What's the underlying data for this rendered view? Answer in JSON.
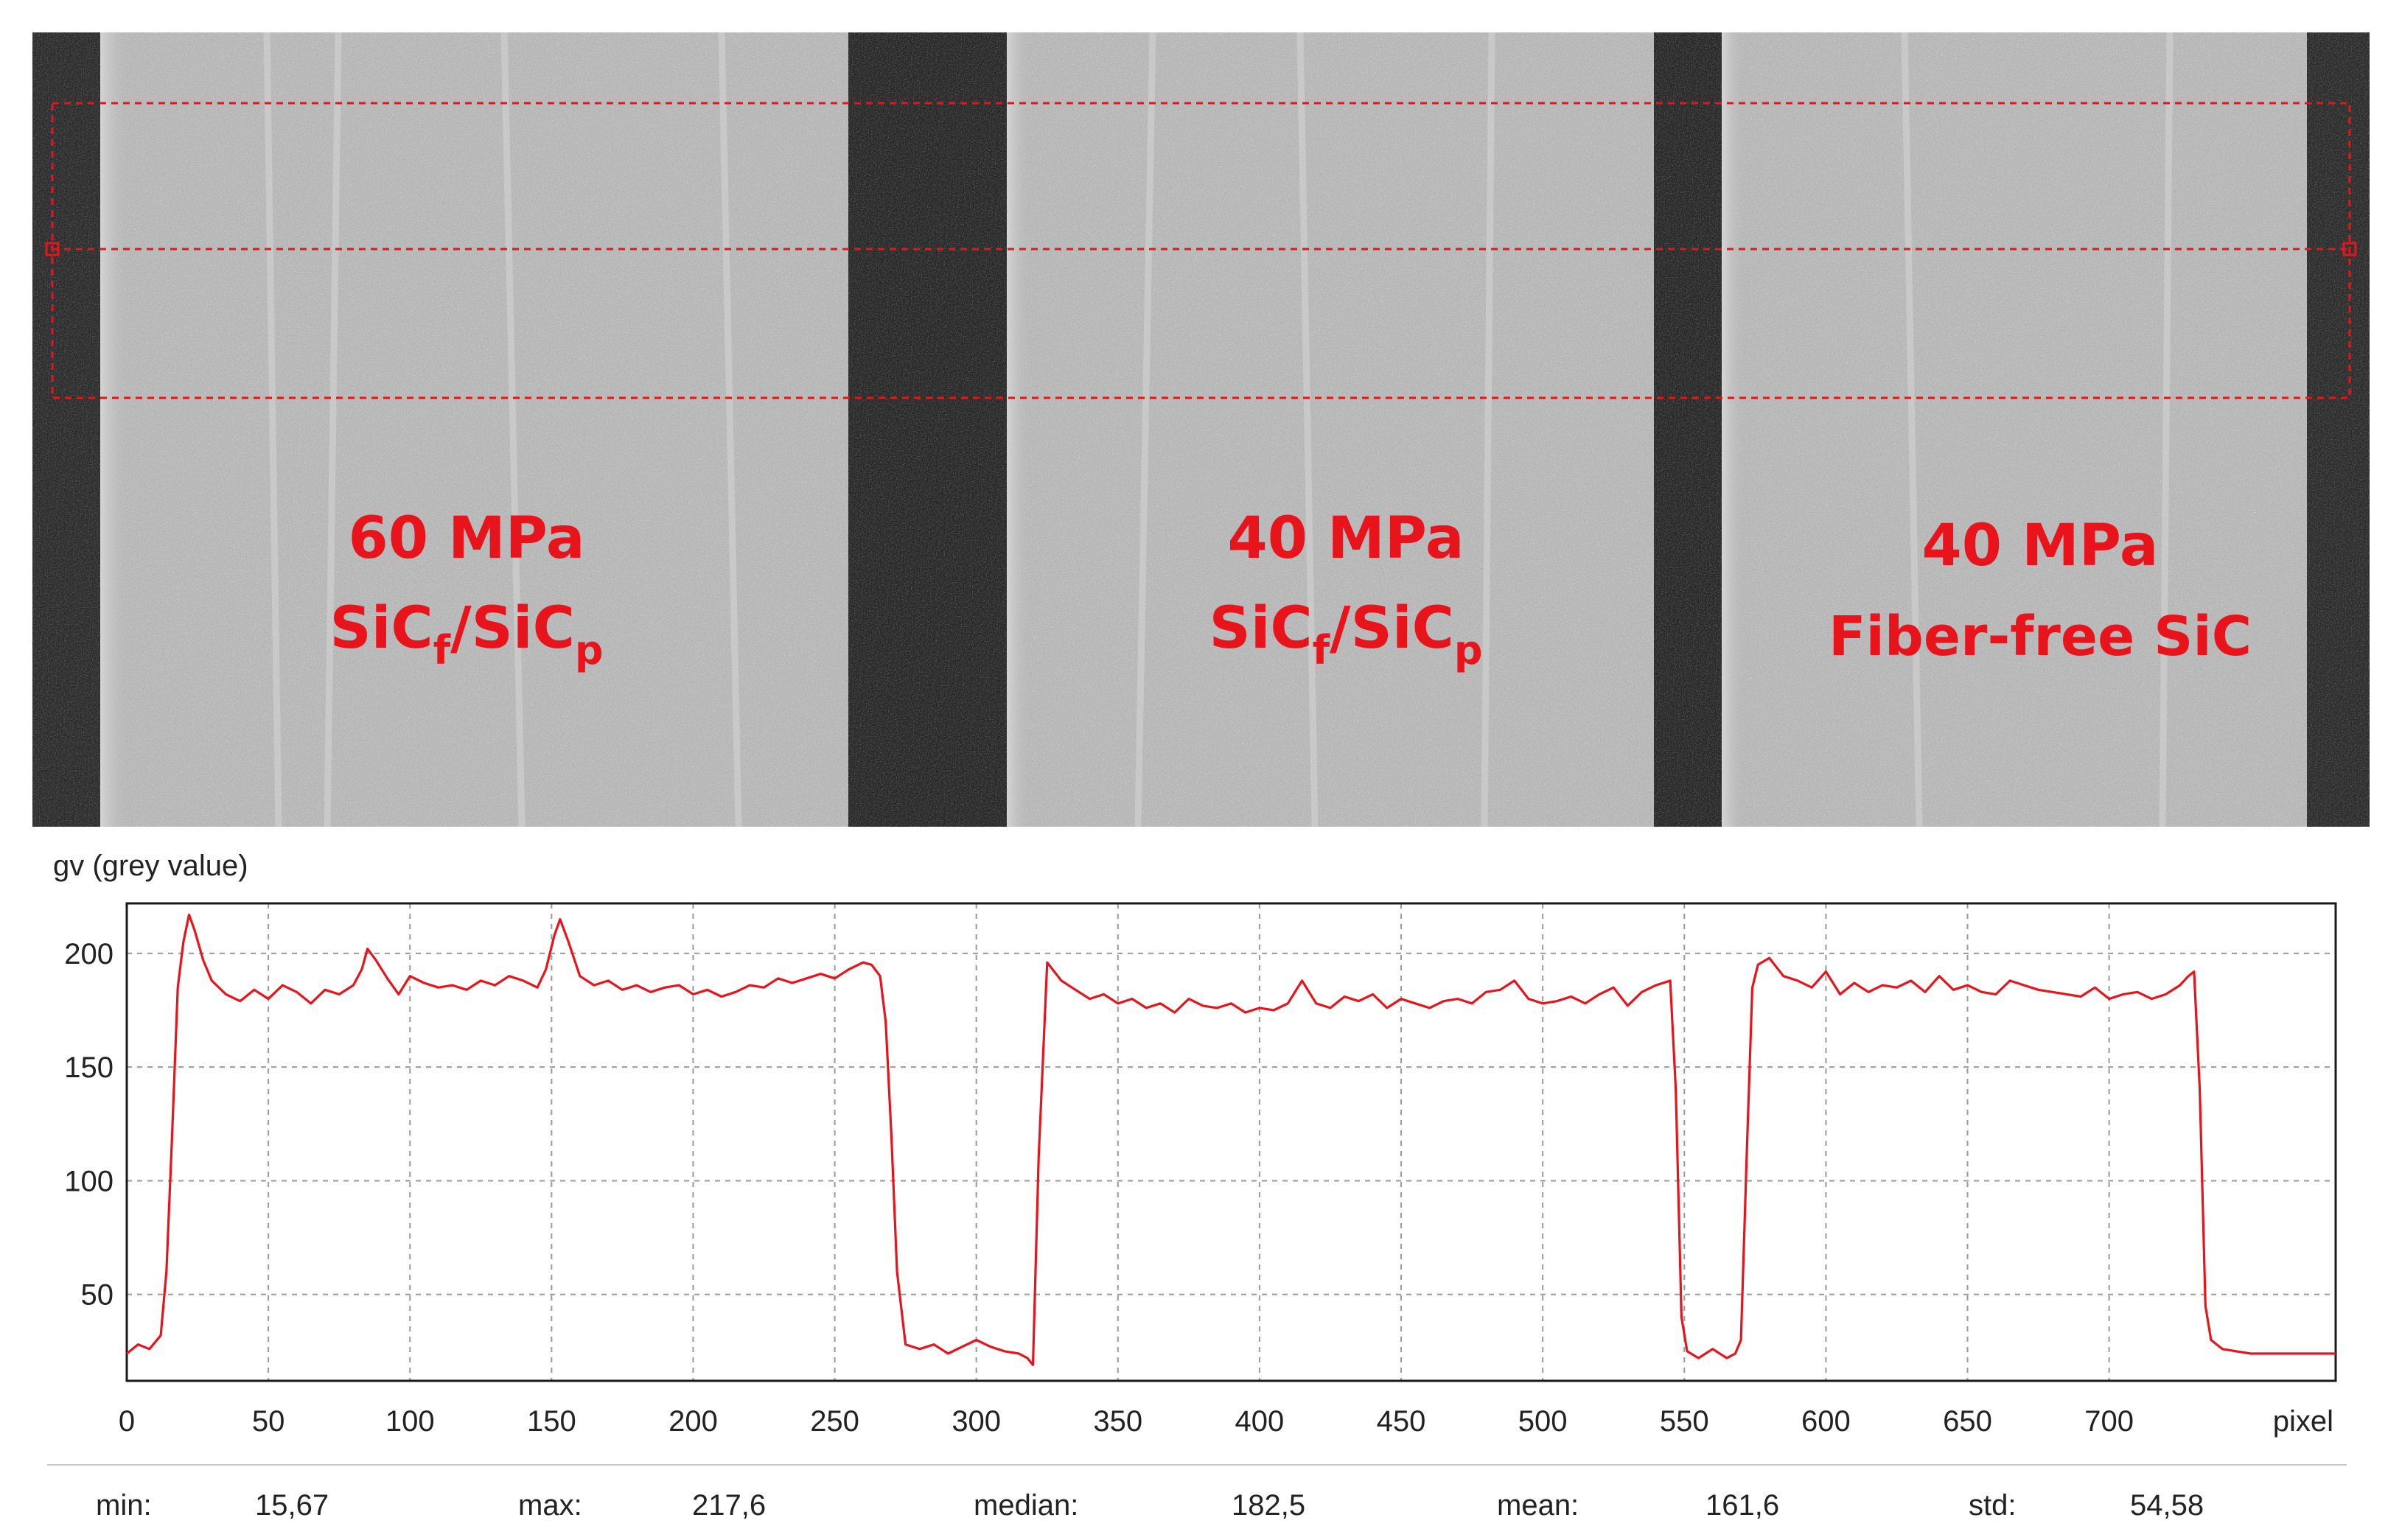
{
  "ct_image": {
    "labels": [
      {
        "line1": "60 MPa",
        "line2_base1": "SiC",
        "line2_sub1": "f",
        "line2_mid": "/SiC",
        "line2_sub2": "p"
      },
      {
        "line1": "40 MPa",
        "line2_base1": "SiC",
        "line2_sub1": "f",
        "line2_mid": "/SiC",
        "line2_sub2": "p"
      },
      {
        "line1": "40 MPa",
        "line2": "Fiber-free SiC"
      }
    ],
    "label_color": "#e8141c",
    "roi_color": "#e8141c"
  },
  "chart_data": {
    "type": "line",
    "ylabel": "gv (grey value)",
    "xlabel": "pixel",
    "xlim": [
      0,
      780
    ],
    "ylim": [
      12,
      222
    ],
    "xticks": [
      0,
      50,
      100,
      150,
      200,
      250,
      300,
      350,
      400,
      450,
      500,
      550,
      600,
      650,
      700
    ],
    "xtick_labels": [
      "0",
      "50",
      "100",
      "150",
      "200",
      "250",
      "300",
      "350",
      "400",
      "450",
      "500",
      "550",
      "600",
      "650",
      "700"
    ],
    "yticks": [
      50,
      100,
      150,
      200
    ],
    "ytick_labels": [
      "50",
      "100",
      "150",
      "200"
    ],
    "grid": true,
    "line_color": "#e8141c",
    "series": [
      {
        "x": [
          0,
          4,
          8,
          12,
          14,
          16,
          18,
          20,
          22,
          24,
          27,
          30,
          35,
          40,
          45,
          50,
          55,
          60,
          65,
          70,
          75,
          80,
          83,
          85,
          88,
          92,
          96,
          100,
          105,
          110,
          115,
          120,
          125,
          130,
          135,
          140,
          145,
          148,
          151,
          153,
          156,
          160,
          165,
          170,
          175,
          180,
          185,
          190,
          195,
          200,
          205,
          210,
          215,
          220,
          225,
          230,
          235,
          240,
          245,
          250,
          255,
          260,
          263,
          266,
          268,
          270,
          272,
          275,
          280,
          285,
          290,
          295,
          300,
          305,
          310,
          315,
          318,
          320,
          322,
          325,
          330,
          335,
          340,
          345,
          350,
          355,
          360,
          365,
          370,
          375,
          380,
          385,
          390,
          395,
          400,
          405,
          410,
          415,
          420,
          425,
          430,
          435,
          440,
          445,
          450,
          455,
          460,
          465,
          470,
          475,
          480,
          485,
          490,
          495,
          500,
          505,
          510,
          515,
          520,
          525,
          530,
          535,
          540,
          545,
          547,
          549,
          551,
          555,
          560,
          565,
          568,
          570,
          572,
          574,
          576,
          580,
          585,
          590,
          595,
          600,
          605,
          610,
          615,
          620,
          625,
          630,
          635,
          640,
          645,
          650,
          655,
          660,
          665,
          670,
          675,
          680,
          685,
          690,
          695,
          700,
          705,
          710,
          715,
          720,
          725,
          728,
          730,
          732,
          734,
          736,
          740,
          745,
          750,
          755,
          760,
          765,
          770,
          775,
          780
        ],
        "y": [
          24,
          28,
          26,
          32,
          60,
          120,
          185,
          205,
          217,
          210,
          197,
          188,
          182,
          179,
          184,
          180,
          186,
          183,
          178,
          184,
          182,
          186,
          193,
          202,
          197,
          189,
          182,
          190,
          187,
          185,
          186,
          184,
          188,
          186,
          190,
          188,
          185,
          193,
          208,
          215,
          205,
          190,
          186,
          188,
          184,
          186,
          183,
          185,
          186,
          182,
          184,
          181,
          183,
          186,
          185,
          189,
          187,
          189,
          191,
          189,
          193,
          196,
          195,
          190,
          170,
          120,
          60,
          28,
          26,
          28,
          24,
          27,
          30,
          27,
          25,
          24,
          22,
          19,
          110,
          196,
          188,
          184,
          180,
          182,
          178,
          180,
          176,
          178,
          174,
          180,
          177,
          176,
          178,
          174,
          176,
          175,
          178,
          188,
          178,
          176,
          181,
          179,
          182,
          176,
          180,
          178,
          176,
          179,
          180,
          178,
          183,
          184,
          188,
          180,
          178,
          179,
          181,
          178,
          182,
          185,
          177,
          183,
          186,
          188,
          140,
          40,
          25,
          22,
          26,
          22,
          24,
          30,
          110,
          185,
          195,
          198,
          190,
          188,
          185,
          192,
          182,
          187,
          183,
          186,
          185,
          188,
          183,
          190,
          184,
          186,
          183,
          182,
          188,
          186,
          184,
          183,
          182,
          181,
          185,
          180,
          182,
          183,
          180,
          182,
          186,
          190,
          192,
          140,
          45,
          30,
          26,
          25,
          24,
          24,
          24,
          24,
          24,
          24,
          24
        ]
      }
    ]
  },
  "stats": [
    {
      "label": "min:",
      "value": "15,67"
    },
    {
      "label": "max:",
      "value": "217,6"
    },
    {
      "label": "median:",
      "value": "182,5"
    },
    {
      "label": "mean:",
      "value": "161,6"
    },
    {
      "label": "std:",
      "value": "54,58"
    }
  ]
}
